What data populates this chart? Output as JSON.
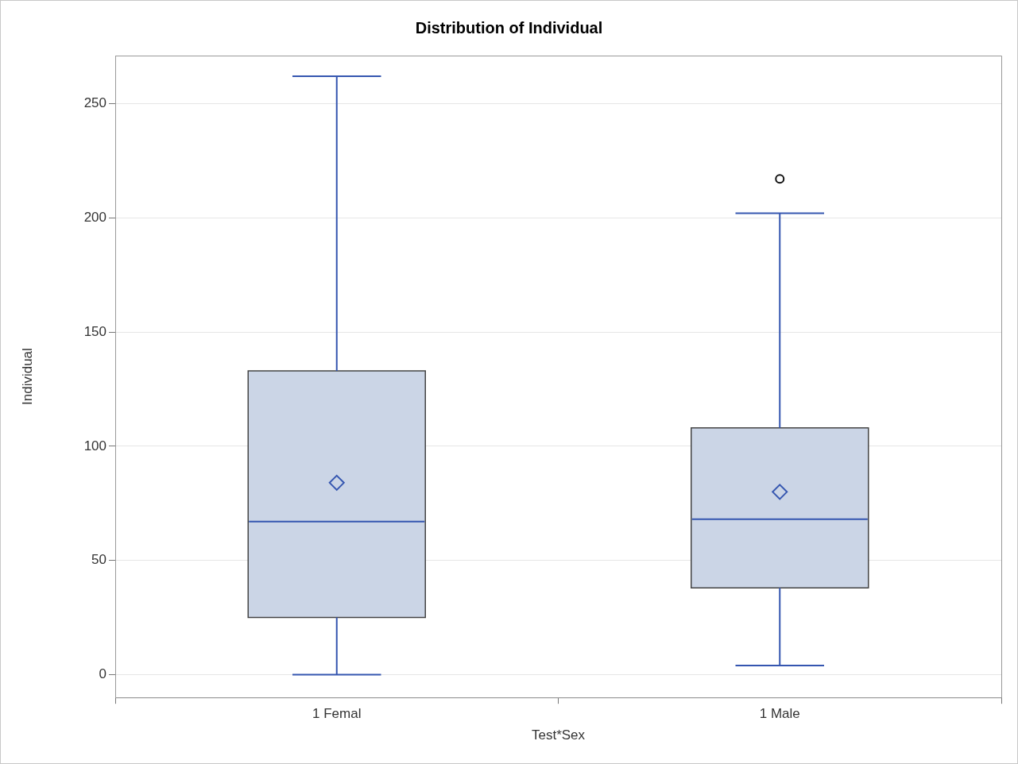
{
  "chart_data": {
    "type": "box",
    "title": "Distribution of Individual",
    "xlabel": "Test*Sex",
    "ylabel": "Individual",
    "categories": [
      "1 Femal",
      "1 Male"
    ],
    "color": "#cbd5e6",
    "boxes": [
      {
        "low": 0,
        "q1": 25,
        "median": 67,
        "q3": 133,
        "high": 262,
        "mean": 84
      },
      {
        "low": 4,
        "q1": 38,
        "median": 68,
        "q3": 108,
        "high": 202,
        "mean": 80,
        "outliers": [
          217
        ]
      }
    ],
    "ylim": [
      -10,
      271
    ],
    "yticks": [
      0,
      50,
      100,
      150,
      200,
      250
    ],
    "grid": "y"
  }
}
